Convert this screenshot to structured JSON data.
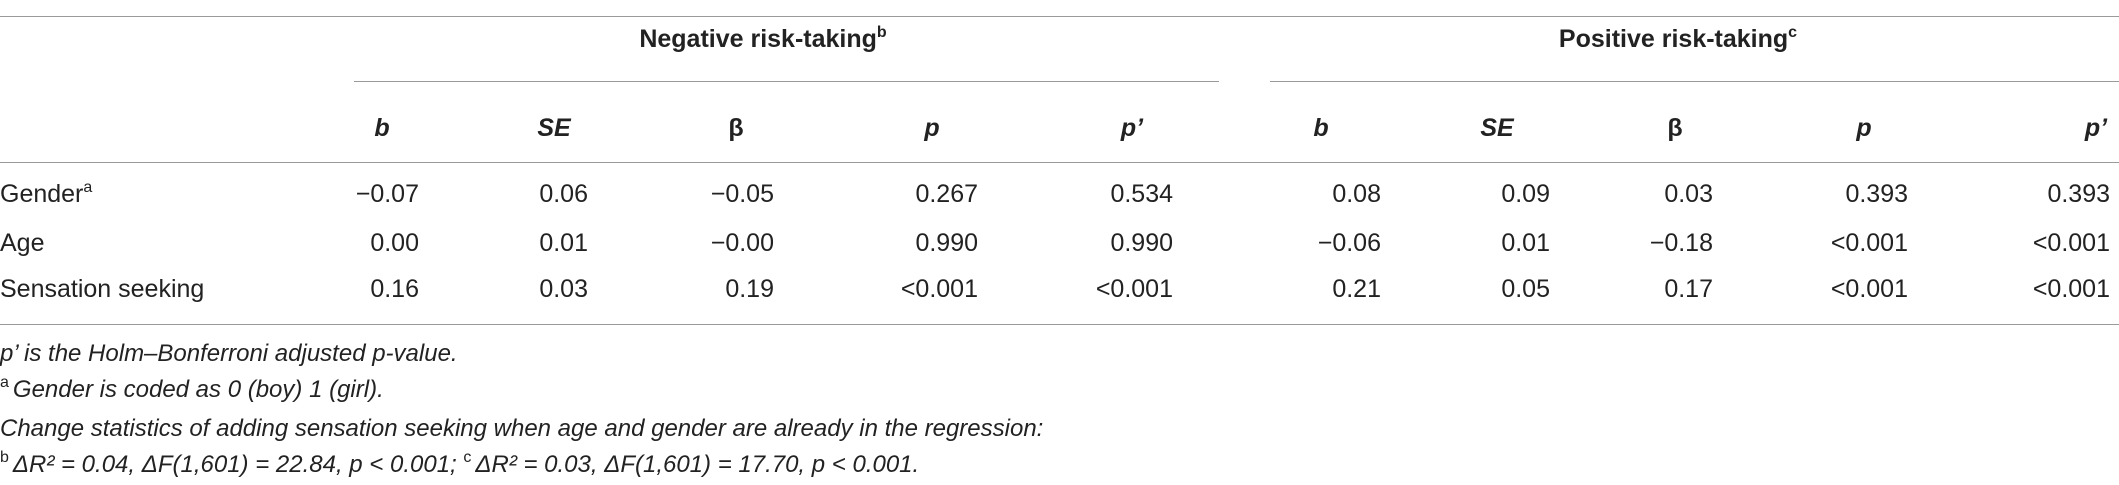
{
  "table": {
    "groups": [
      {
        "label": "Negative risk-taking",
        "sup": "b",
        "columns": [
          "b",
          "SE",
          "β",
          "p",
          "p’"
        ]
      },
      {
        "label": "Positive risk-taking",
        "sup": "c",
        "columns": [
          "b",
          "SE",
          "β",
          "p",
          "p’"
        ]
      }
    ],
    "rows": [
      {
        "label": "Gender",
        "sup": "a",
        "cells": [
          "−0.07",
          "0.06",
          "−0.05",
          "0.267",
          "0.534",
          "0.08",
          "0.09",
          "0.03",
          "0.393",
          "0.393"
        ]
      },
      {
        "label": "Age",
        "cells": [
          "0.00",
          "0.01",
          "−0.00",
          "0.990",
          "0.990",
          "−0.06",
          "0.01",
          "−0.18",
          "<0.001",
          "<0.001"
        ]
      },
      {
        "label": "Sensation seeking",
        "cells": [
          "0.16",
          "0.03",
          "0.19",
          "<0.001",
          "<0.001",
          "0.21",
          "0.05",
          "0.17",
          "<0.001",
          "<0.001"
        ]
      }
    ]
  },
  "notes": [
    {
      "text": "p’ is the Holm–Bonferroni adjusted p-value."
    },
    {
      "sup": "a",
      "text": "Gender is coded as 0 (boy) 1 (girl)."
    },
    {
      "text": "Change statistics of adding sensation seeking when age and gender are already in the regression:"
    },
    {
      "parts": [
        {
          "sup": "b",
          "text": "ΔR² = 0.04, ΔF(1,601) = 22.84, p < 0.001;"
        },
        {
          "sup": "c",
          "text": "ΔR² = 0.03, ΔF(1,601) = 17.70, p < 0.001."
        }
      ]
    }
  ]
}
